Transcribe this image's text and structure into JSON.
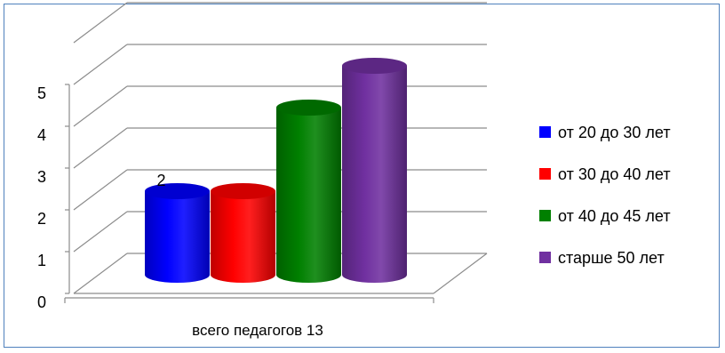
{
  "chart_data": {
    "type": "bar",
    "style": "3d-cylinder",
    "categories": [
      "всего педагогов 13"
    ],
    "series": [
      {
        "name": "от 20 до 30 лет",
        "values": [
          2
        ],
        "color": "#0000ff",
        "data_label": "2"
      },
      {
        "name": "от 30 до 40 лет",
        "values": [
          2
        ],
        "color": "#ff0000"
      },
      {
        "name": "от 40 до 45 лет",
        "values": [
          4
        ],
        "color": "#008000"
      },
      {
        "name": "старше 50 лет",
        "values": [
          5
        ],
        "color": "#7030a0"
      }
    ],
    "yticks": [
      "0",
      "1",
      "2",
      "3",
      "4",
      "5"
    ],
    "ylim": [
      0,
      5
    ],
    "grid": true,
    "legend_position": "right",
    "title": "",
    "xlabel": "",
    "ylabel": ""
  },
  "colors": {
    "frame_border": "#4f81bd",
    "gridline": "#8c8c8c"
  }
}
